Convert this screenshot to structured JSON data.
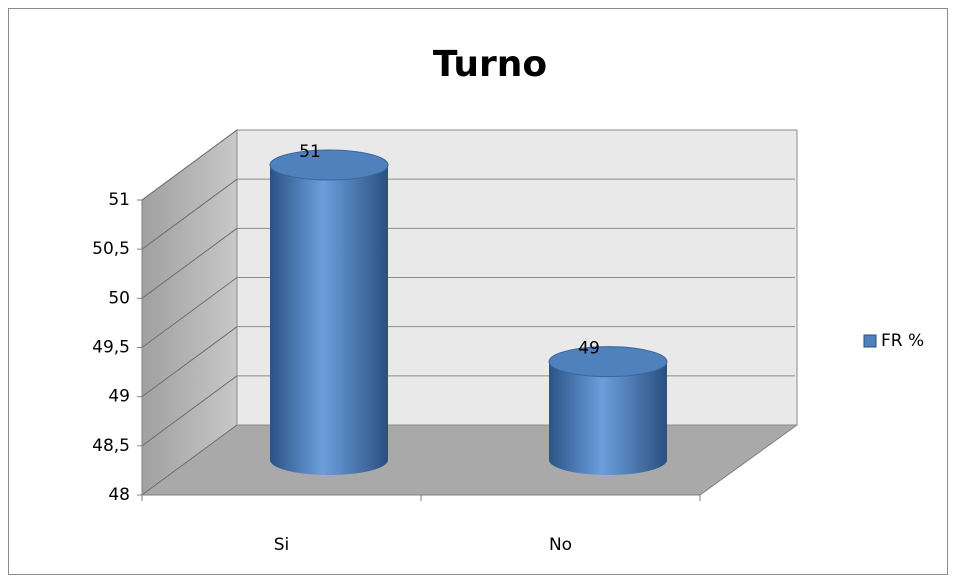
{
  "chart_data": {
    "type": "bar3d",
    "title": "Turno",
    "categories": [
      "Si",
      "No"
    ],
    "series": [
      {
        "name": "FR %",
        "color": "#4f81bd",
        "values": [
          51,
          49
        ]
      }
    ],
    "ylim": [
      48,
      51
    ],
    "yticks": [
      48,
      {
        "value": 48.5,
        "label": "48,5"
      },
      49,
      {
        "value": 49.5,
        "label": "49,5"
      },
      50,
      {
        "value": 50.5,
        "label": "50,5"
      },
      51
    ],
    "grid": true,
    "legend": "right"
  }
}
